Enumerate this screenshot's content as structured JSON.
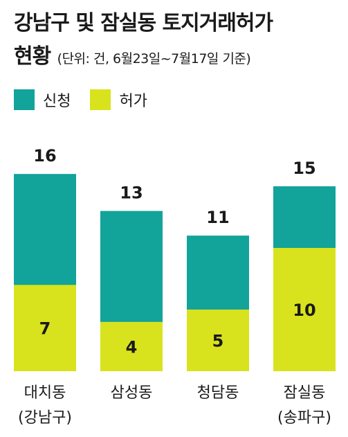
{
  "chart_data": {
    "type": "bar",
    "stacked": true,
    "title": "강남구 및 잠실동 토지거래허가",
    "title_line2": "현황",
    "subtitle": "(단위: 건, 6월23일~7월17일 기준)",
    "categories": [
      [
        "대치동",
        "(강남구)"
      ],
      [
        "삼성동",
        ""
      ],
      [
        "청담동",
        ""
      ],
      [
        "잠실동",
        "(송파구)"
      ]
    ],
    "series": [
      {
        "name": "신청",
        "color": "#12a39b",
        "values": [
          16,
          13,
          11,
          15
        ]
      },
      {
        "name": "허가",
        "color": "#d8e31e",
        "values": [
          7,
          4,
          5,
          10
        ]
      }
    ],
    "grid": false,
    "legend": "top-left"
  }
}
